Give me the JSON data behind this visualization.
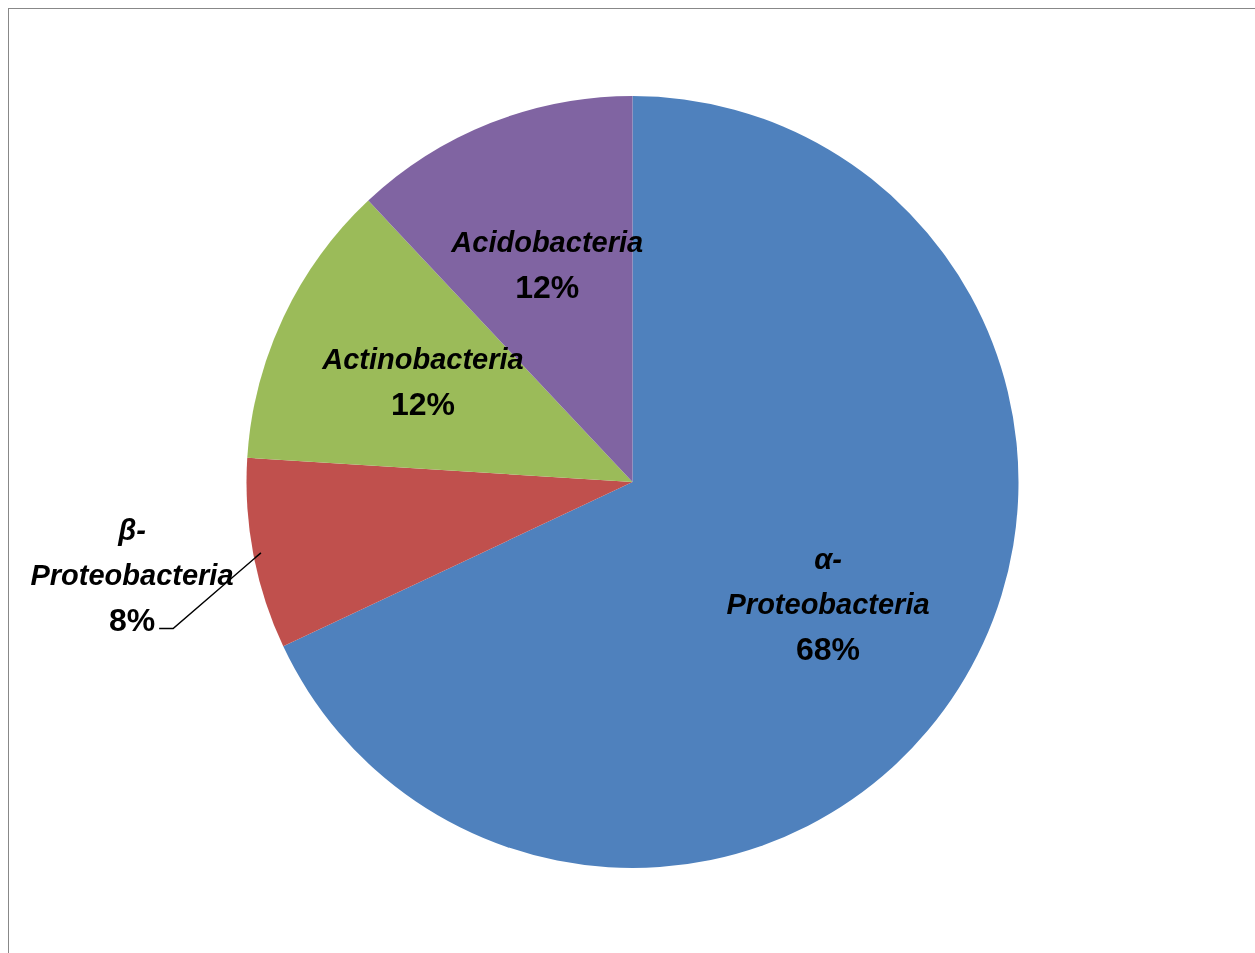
{
  "chart_data": {
    "type": "pie",
    "categories": [
      "α-Proteobacteria",
      "β-Proteobacteria",
      "Actinobacteria",
      "Acidobacteria"
    ],
    "values": [
      68,
      8,
      12,
      12
    ],
    "value_labels": [
      "68%",
      "8%",
      "12%",
      "12%"
    ],
    "colors": [
      "#4f81bd",
      "#c0504d",
      "#9bbb59",
      "#8064a2"
    ],
    "legend": false
  }
}
